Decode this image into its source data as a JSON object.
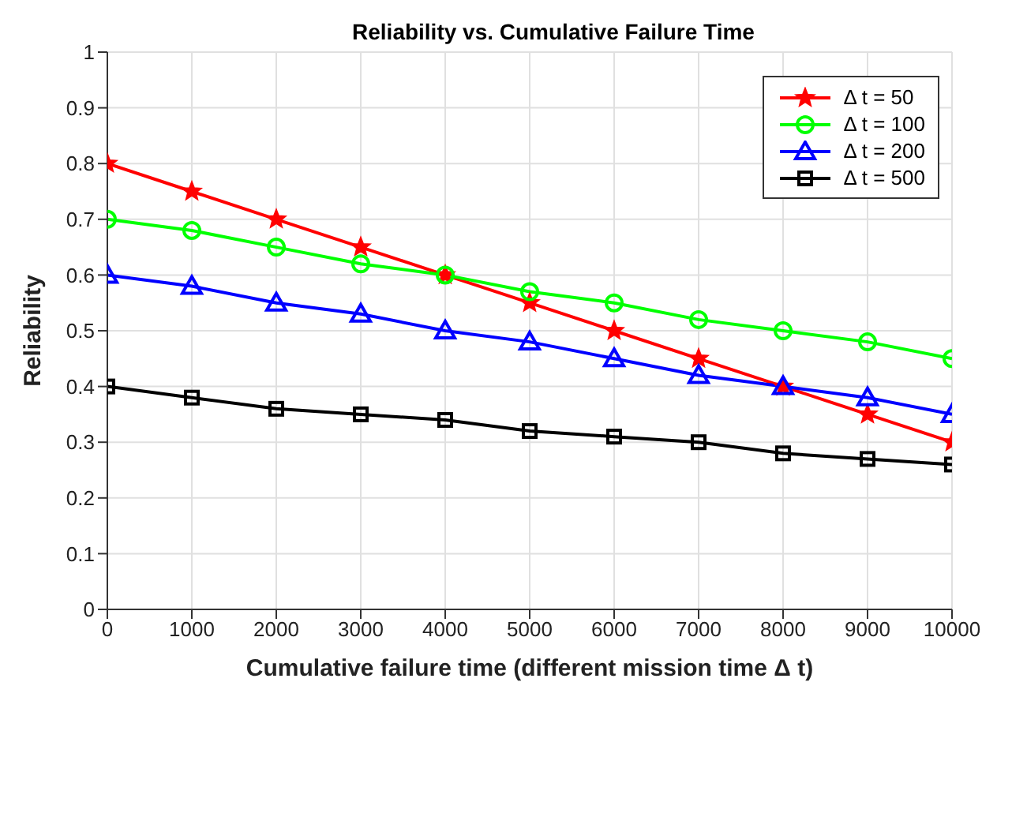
{
  "chart_data": {
    "type": "line",
    "title": "Reliability vs. Cumulative Failure Time",
    "xlabel": "Cumulative failure time (different mission time Δ t)",
    "ylabel": "Reliability",
    "x": [
      0,
      1000,
      2000,
      3000,
      4000,
      5000,
      6000,
      7000,
      8000,
      9000,
      10000
    ],
    "xlim": [
      0,
      10000
    ],
    "xticks": [
      0,
      1000,
      2000,
      3000,
      4000,
      5000,
      6000,
      7000,
      8000,
      9000,
      10000
    ],
    "ylim": [
      0,
      1
    ],
    "yticks": [
      0,
      0.1,
      0.2,
      0.3,
      0.4,
      0.5,
      0.6,
      0.7,
      0.8,
      0.9,
      1
    ],
    "grid": true,
    "legend": "top right",
    "line_style": "solid",
    "series": [
      {
        "name": "Δ t = 50",
        "color": "#ff0000",
        "marker": "star",
        "values": [
          0.8,
          0.75,
          0.7,
          0.65,
          0.6,
          0.55,
          0.5,
          0.45,
          0.4,
          0.35,
          0.3
        ]
      },
      {
        "name": "Δ t = 100",
        "color": "#00ff00",
        "marker": "circle",
        "values": [
          0.7,
          0.68,
          0.65,
          0.62,
          0.6,
          0.57,
          0.55,
          0.52,
          0.5,
          0.48,
          0.45
        ]
      },
      {
        "name": "Δ t = 200",
        "color": "#0000ff",
        "marker": "triangle",
        "values": [
          0.6,
          0.58,
          0.55,
          0.53,
          0.5,
          0.48,
          0.45,
          0.42,
          0.4,
          0.38,
          0.35
        ]
      },
      {
        "name": "Δ t = 500",
        "color": "#000000",
        "marker": "square",
        "values": [
          0.4,
          0.38,
          0.36,
          0.35,
          0.34,
          0.32,
          0.31,
          0.3,
          0.28,
          0.27,
          0.26
        ]
      }
    ]
  }
}
